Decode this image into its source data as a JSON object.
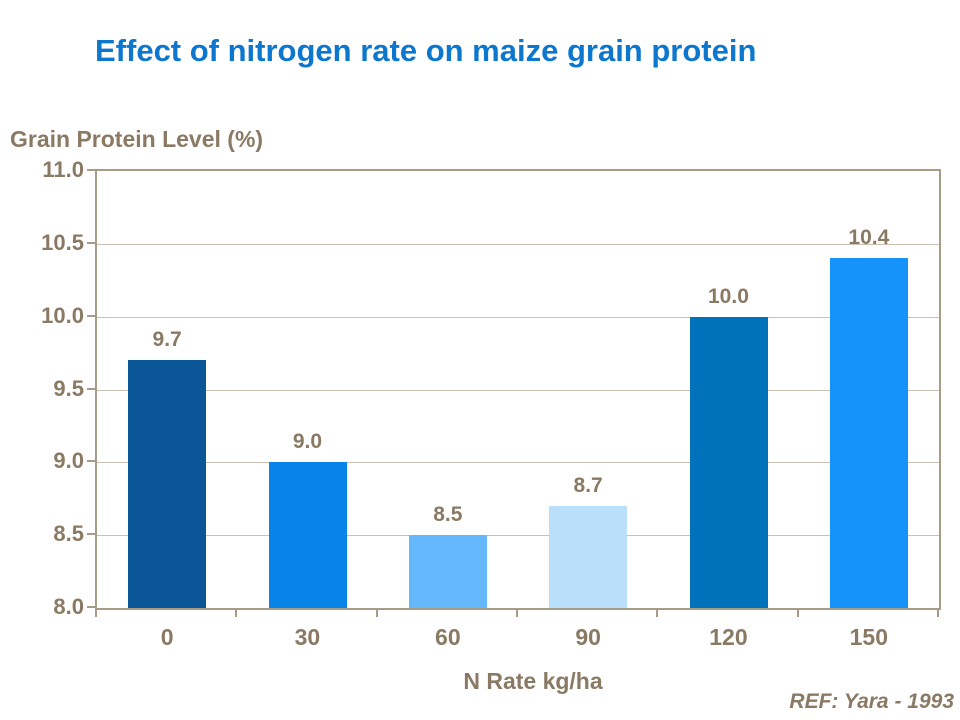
{
  "slide": {
    "ref": "REF: Yara - 1993"
  },
  "chart_data": {
    "type": "bar",
    "title": "Effect of nitrogen rate on maize grain protein",
    "y_axis_title": "Grain Protein Level (%)",
    "xlabel": "N Rate kg/ha",
    "ylabel": "Grain Protein Level (%)",
    "categories": [
      "0",
      "30",
      "60",
      "90",
      "120",
      "150"
    ],
    "values": [
      9.7,
      9.0,
      8.5,
      8.7,
      10.0,
      10.4
    ],
    "value_labels": [
      "9.7",
      "9.0",
      "8.5",
      "8.7",
      "10.0",
      "10.4"
    ],
    "bar_colors": [
      "#0B5697",
      "#0884E8",
      "#66B8FC",
      "#B9DFFB",
      "#0072BC",
      "#1593FB"
    ],
    "ylim": [
      8.0,
      11.0
    ],
    "ytick_step": 0.5,
    "ytick_labels": [
      "11.0",
      "10.5",
      "10.0",
      "9.5",
      "9.0",
      "8.5",
      "8.0"
    ],
    "grid": true,
    "legend": "none",
    "colors": {
      "title": "#0D77CE",
      "label_text": "#8A7A64",
      "gridline": "#CBC1B2",
      "axis_border": "#A79C89"
    }
  }
}
